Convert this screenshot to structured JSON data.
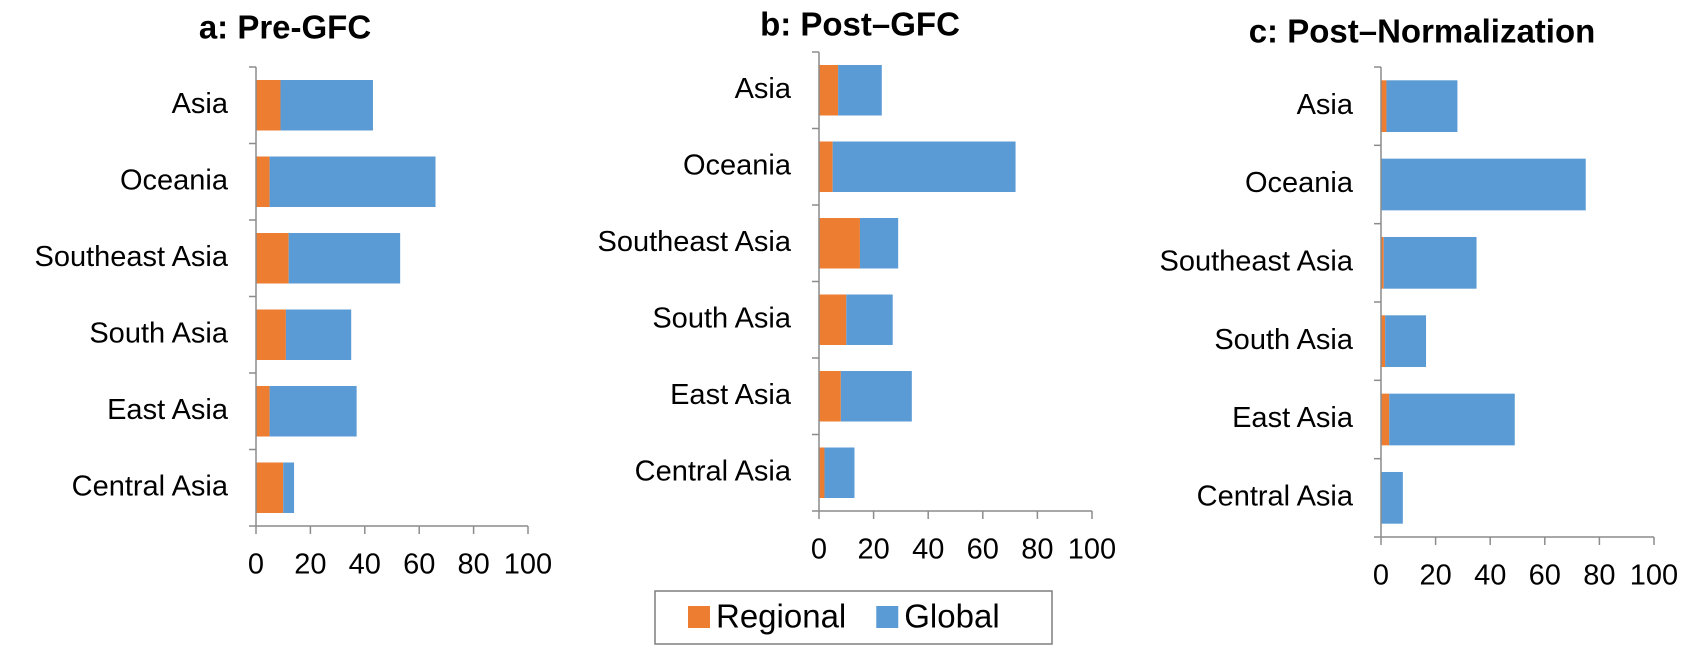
{
  "chart_data": [
    {
      "type": "bar",
      "orientation": "horizontal",
      "stacked": true,
      "title": "a: Pre-GFC",
      "categories": [
        "Asia",
        "Oceania",
        "Southeast Asia",
        "South Asia",
        "East Asia",
        "Central Asia"
      ],
      "series": [
        {
          "name": "Regional",
          "color": "#ed7d31",
          "values": [
            9,
            5,
            12,
            11,
            5,
            10
          ]
        },
        {
          "name": "Global",
          "color": "#5b9bd5",
          "values": [
            34,
            61,
            41,
            24,
            32,
            4
          ]
        }
      ],
      "xlim": [
        0,
        100
      ],
      "xticks": [
        0,
        20,
        40,
        60,
        80,
        100
      ]
    },
    {
      "type": "bar",
      "orientation": "horizontal",
      "stacked": true,
      "title": "b: Post–GFC",
      "categories": [
        "Asia",
        "Oceania",
        "Southeast Asia",
        "South Asia",
        "East Asia",
        "Central Asia"
      ],
      "series": [
        {
          "name": "Regional",
          "color": "#ed7d31",
          "values": [
            7,
            5,
            15,
            10,
            8,
            2
          ]
        },
        {
          "name": "Global",
          "color": "#5b9bd5",
          "values": [
            16,
            67,
            14,
            17,
            26,
            11
          ]
        }
      ],
      "xlim": [
        0,
        100
      ],
      "xticks": [
        0,
        20,
        40,
        60,
        80,
        100
      ]
    },
    {
      "type": "bar",
      "orientation": "horizontal",
      "stacked": true,
      "title": "c: Post–Normalization",
      "categories": [
        "Asia",
        "Oceania",
        "Southeast Asia",
        "South Asia",
        "East Asia",
        "Central Asia"
      ],
      "series": [
        {
          "name": "Regional",
          "color": "#ed7d31",
          "values": [
            2,
            0,
            1,
            1.5,
            3,
            0
          ]
        },
        {
          "name": "Global",
          "color": "#5b9bd5",
          "values": [
            26,
            75,
            34,
            15,
            46,
            8
          ]
        }
      ],
      "xlim": [
        0,
        100
      ],
      "xticks": [
        0,
        20,
        40,
        60,
        80,
        100
      ]
    }
  ]
}
